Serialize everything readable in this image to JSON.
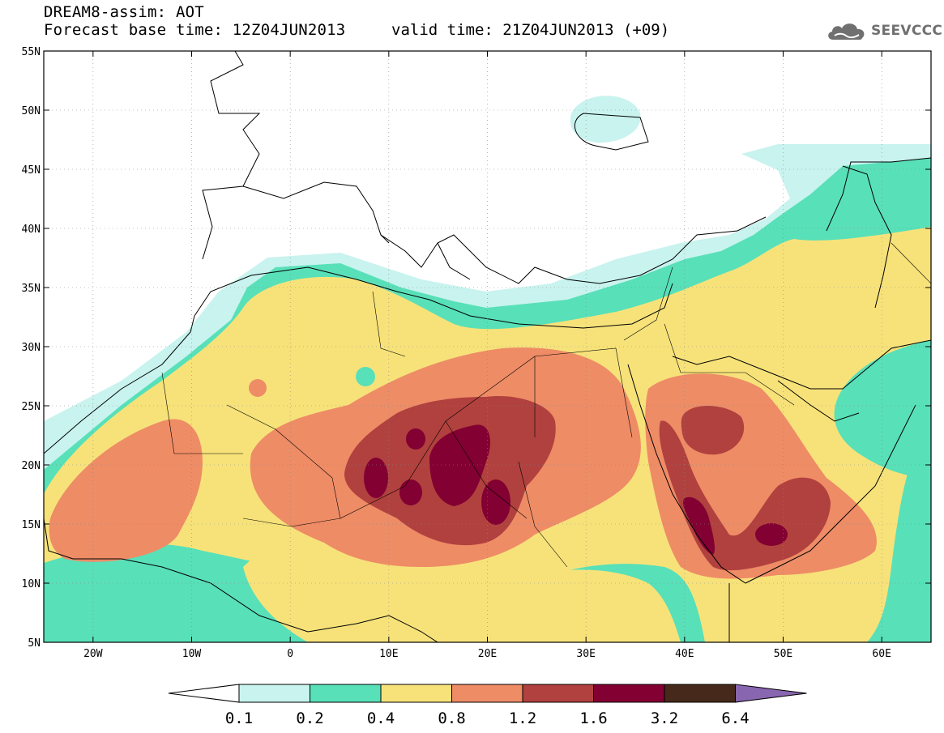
{
  "header": {
    "line1": "DREAM8-assim: AOT",
    "line2": "Forecast base time: 12Z04JUN2013",
    "valid": "valid time: 21Z04JUN2013 (+09)"
  },
  "logo": {
    "text": "SEEVCCC",
    "icon": "cloud-icon",
    "color": "#707070"
  },
  "map": {
    "lon_range": [
      -25,
      65
    ],
    "lat_range": [
      5,
      55
    ],
    "lat_ticks": [
      {
        "v": 55,
        "label": "55N"
      },
      {
        "v": 50,
        "label": "50N"
      },
      {
        "v": 45,
        "label": "45N"
      },
      {
        "v": 40,
        "label": "40N"
      },
      {
        "v": 35,
        "label": "35N"
      },
      {
        "v": 30,
        "label": "30N"
      },
      {
        "v": 25,
        "label": "25N"
      },
      {
        "v": 20,
        "label": "20N"
      },
      {
        "v": 15,
        "label": "15N"
      },
      {
        "v": 10,
        "label": "10N"
      },
      {
        "v": 5,
        "label": "5N"
      }
    ],
    "lon_ticks": [
      {
        "v": -20,
        "label": "20W"
      },
      {
        "v": -10,
        "label": "10W"
      },
      {
        "v": 0,
        "label": "0"
      },
      {
        "v": 10,
        "label": "10E"
      },
      {
        "v": 20,
        "label": "20E"
      },
      {
        "v": 30,
        "label": "30E"
      },
      {
        "v": 40,
        "label": "40E"
      },
      {
        "v": 50,
        "label": "50E"
      },
      {
        "v": 60,
        "label": "60E"
      }
    ],
    "grid": true
  },
  "colorbar": {
    "colors": [
      "#c8f3ef",
      "#58e0b8",
      "#f7e27a",
      "#ee8c66",
      "#b1413e",
      "#820032",
      "#46291a"
    ],
    "under_color": "#ffffff",
    "over_color": "#8866b0",
    "labels": [
      "0.1",
      "0.2",
      "0.4",
      "0.8",
      "1.2",
      "1.6",
      "3.2",
      "6.4"
    ]
  }
}
